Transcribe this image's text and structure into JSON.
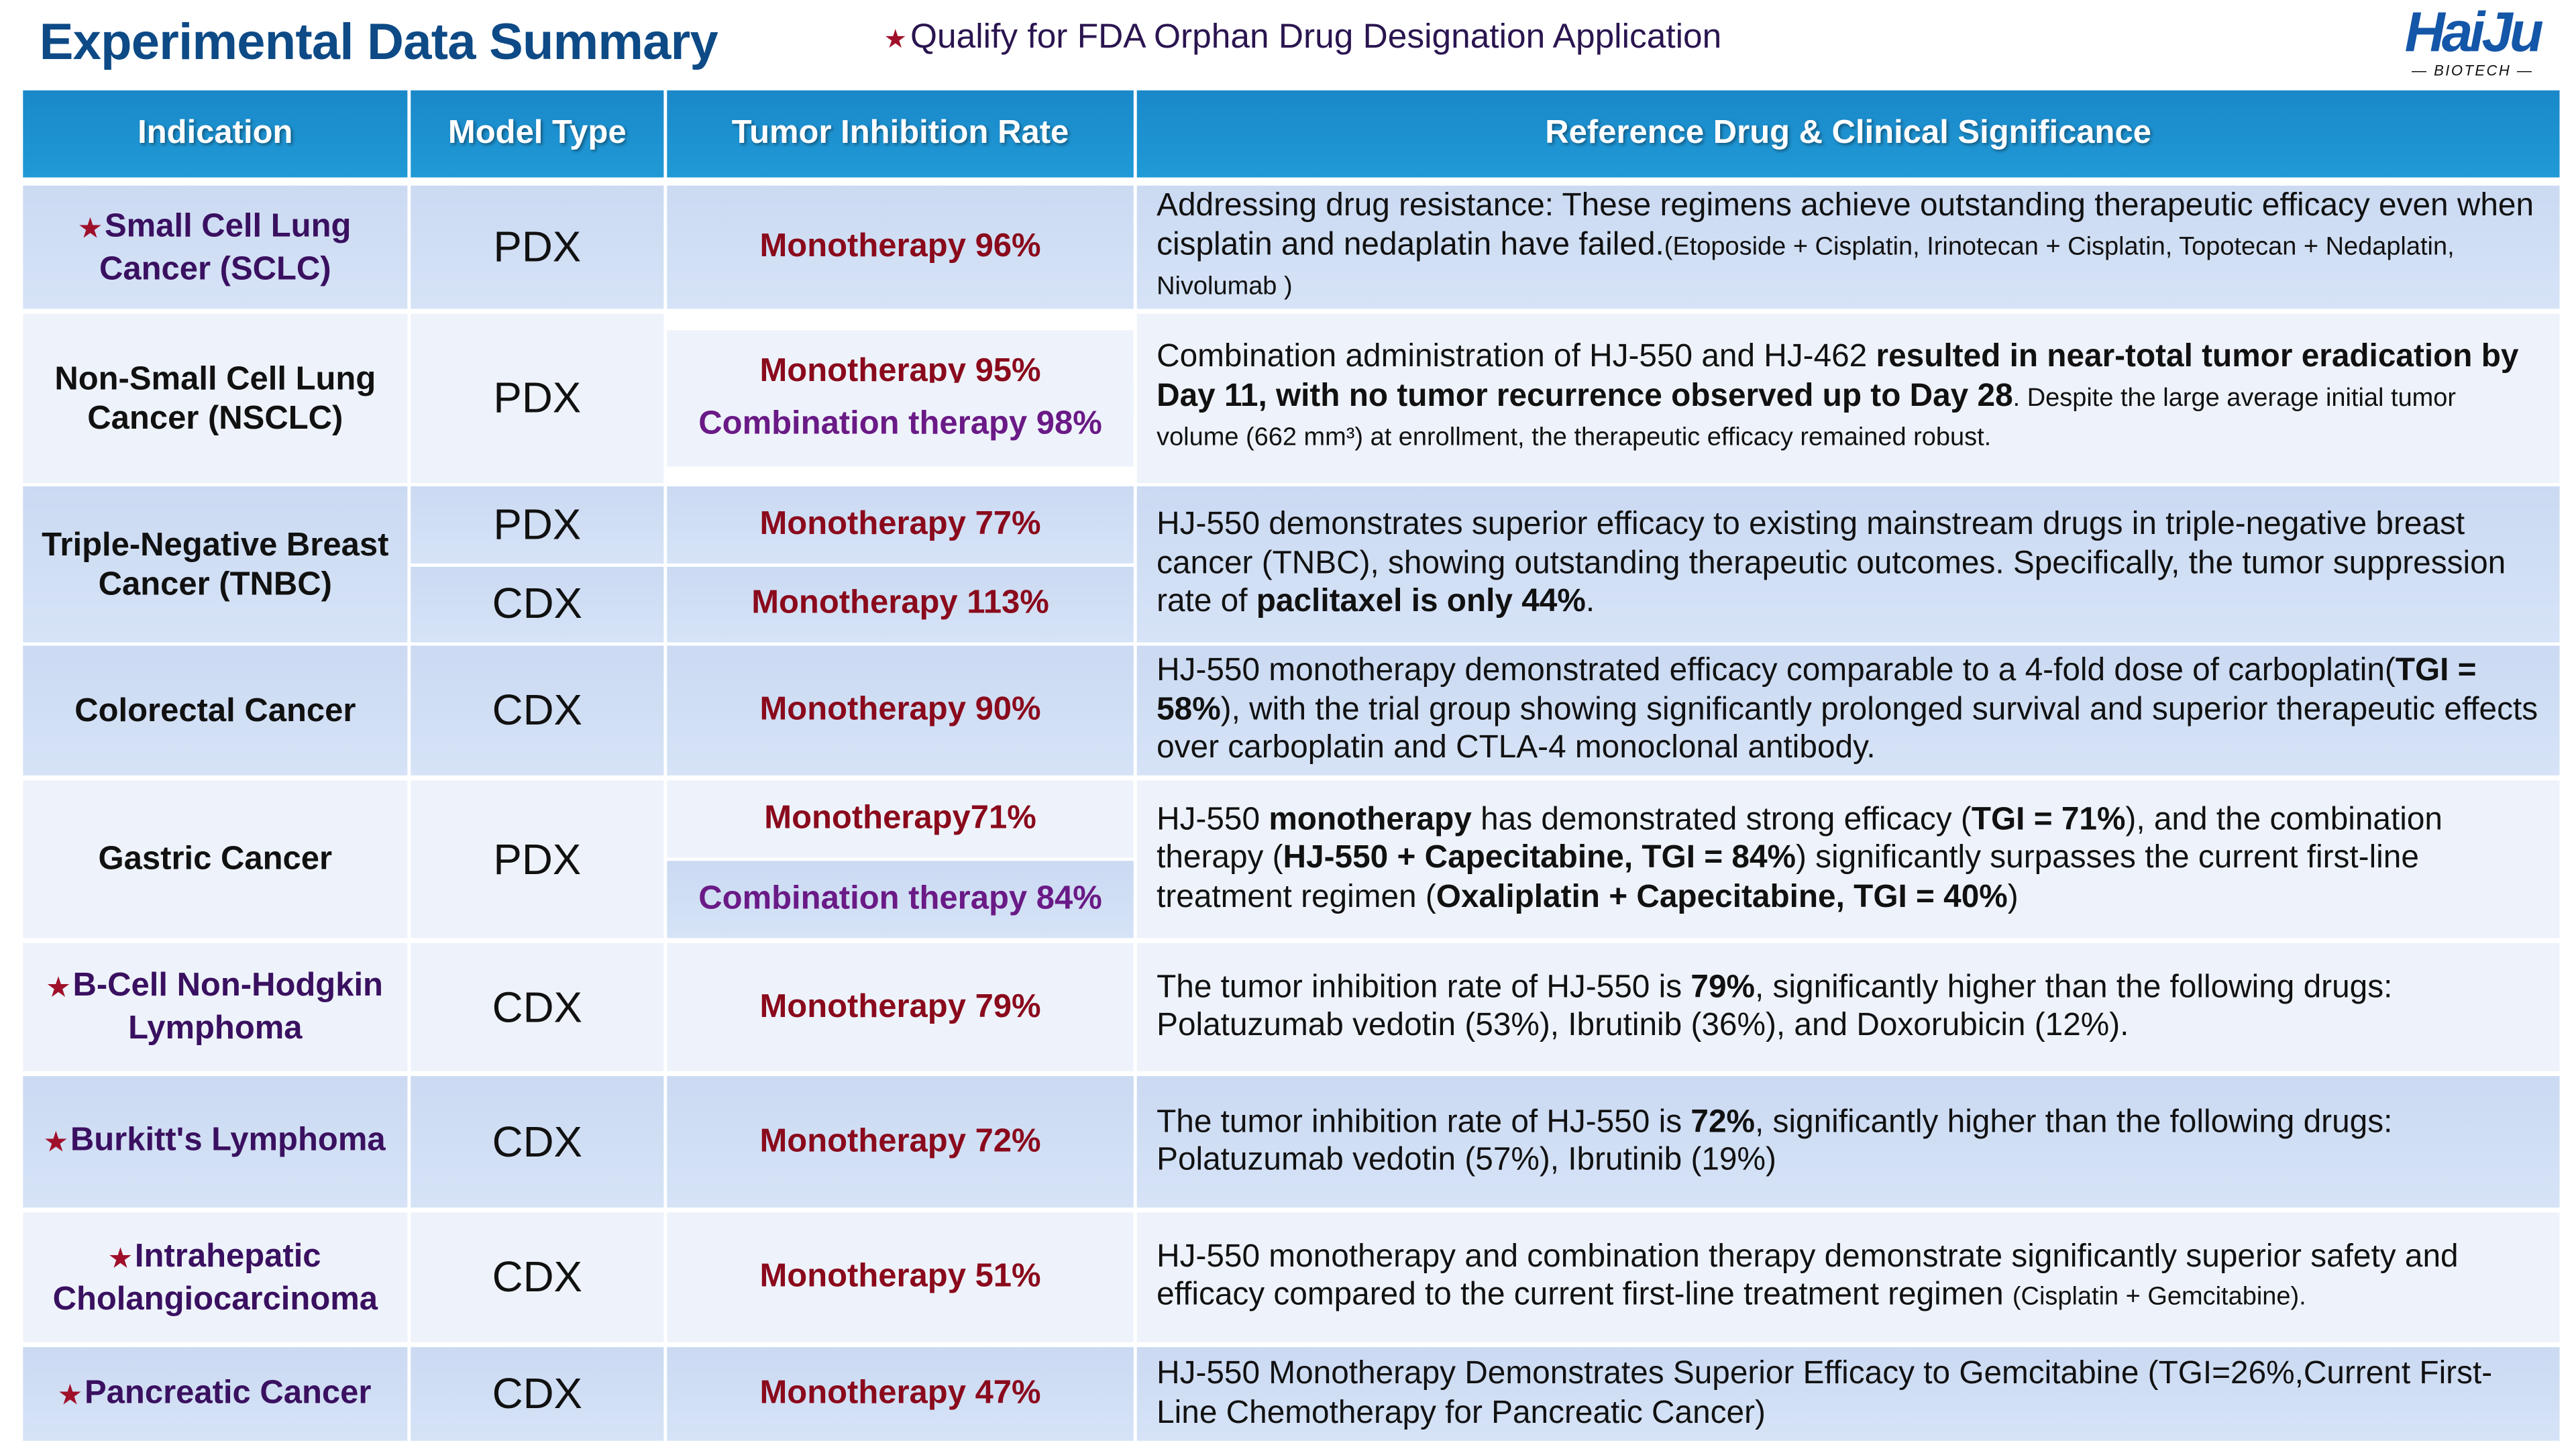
{
  "title": "Experimental Data Summary",
  "subtitle": "Qualify for FDA Orphan Drug Designation Application",
  "logo": {
    "name": "HaiJu",
    "tagline": "BIOTECH"
  },
  "colors": {
    "header": "#1a88c9",
    "title": "#0d4a86",
    "monotherapy": "#8a0a1c",
    "combination": "#6a1a86",
    "star": "#a0102a"
  },
  "headers": [
    "Indication",
    "Model Type",
    "Tumor Inhibition Rate",
    "Reference Drug  &  Clinical Significance"
  ],
  "rows": [
    {
      "indication": "Small Cell Lung Cancer (SCLC)",
      "star": true,
      "models": [
        "PDX"
      ],
      "rates": [
        {
          "text": "Monotherapy 96%",
          "kind": "mono"
        }
      ],
      "bg": "blue",
      "desc": [
        [
          "Addressing drug resistance: These regimens achieve outstanding therapeutic efficacy even when cisplatin and nedaplatin have failed.",
          ""
        ],
        [
          "(Etoposide + Cisplatin, Irinotecan + Cisplatin, Topotecan + Nedaplatin, Nivolumab )",
          "s"
        ]
      ]
    },
    {
      "indication": "Non-Small Cell Lung Cancer (NSCLC)",
      "star": false,
      "models": [
        "PDX"
      ],
      "rates": [
        {
          "text": "Monotherapy  95%",
          "kind": "mono"
        },
        {
          "text": "Combination therapy 98%",
          "kind": "combo"
        }
      ],
      "bg": "light",
      "desc": [
        [
          "Combination administration of HJ-550 and HJ-462 ",
          ""
        ],
        [
          "resulted in near-total tumor eradication by Day 11, with no tumor recurrence observed up to Day 28",
          "b"
        ],
        [
          ".  Despite the large average initial tumor volume (662 mm³) at enrollment, the therapeutic efficacy remained robust.",
          "s"
        ]
      ]
    },
    {
      "indication": "Triple-Negative Breast Cancer (TNBC)",
      "star": false,
      "models": [
        "PDX",
        "CDX"
      ],
      "rates": [
        {
          "text": "Monotherapy 77%",
          "kind": "mono"
        },
        {
          "text": "Monotherapy 113%",
          "kind": "mono"
        }
      ],
      "bg": "blue",
      "desc": [
        [
          "HJ-550 demonstrates superior efficacy to existing mainstream drugs in triple-negative breast cancer (TNBC), showing outstanding therapeutic outcomes. Specifically, the tumor suppression rate of ",
          ""
        ],
        [
          "paclitaxel is only 44%",
          "b"
        ],
        [
          ".",
          ""
        ]
      ]
    },
    {
      "indication": "Colorectal Cancer",
      "star": false,
      "models": [
        "CDX"
      ],
      "rates": [
        {
          "text": "Monotherapy 90%",
          "kind": "mono"
        }
      ],
      "bg": "blue",
      "desc": [
        [
          "HJ-550 monotherapy demonstrated efficacy comparable to a 4-fold dose of carboplatin(",
          ""
        ],
        [
          "TGI = 58%",
          "b"
        ],
        [
          "), with the trial group showing significantly prolonged survival and superior therapeutic effects over carboplatin and CTLA-4 monoclonal antibody.",
          ""
        ]
      ]
    },
    {
      "indication": "Gastric Cancer",
      "star": false,
      "models": [
        "PDX"
      ],
      "rates": [
        {
          "text": "Monotherapy71%",
          "kind": "mono"
        },
        {
          "text": "Combination therapy 84%",
          "kind": "combo"
        }
      ],
      "bg": "light",
      "desc": [
        [
          "HJ-550 ",
          ""
        ],
        [
          "monotherapy",
          "b"
        ],
        [
          " has demonstrated strong efficacy (",
          ""
        ],
        [
          "TGI = 71%",
          "b"
        ],
        [
          "), and the combination therapy (",
          ""
        ],
        [
          "HJ-550 + Capecitabine, TGI = 84%",
          "b"
        ],
        [
          ") significantly surpasses the current first-line treatment regimen (",
          ""
        ],
        [
          "Oxaliplatin + Capecitabine, TGI = 40%",
          "b"
        ],
        [
          ")",
          ""
        ]
      ]
    },
    {
      "indication": "B-Cell Non-Hodgkin Lymphoma",
      "star": true,
      "models": [
        "CDX"
      ],
      "rates": [
        {
          "text": "Monotherapy 79%",
          "kind": "mono"
        }
      ],
      "bg": "light",
      "desc": [
        [
          "The tumor inhibition rate of HJ-550 is ",
          ""
        ],
        [
          "79%",
          "b"
        ],
        [
          ", significantly higher than the following drugs: Polatuzumab vedotin (53%), Ibrutinib (36%), and Doxorubicin (12%).",
          ""
        ]
      ]
    },
    {
      "indication": "Burkitt's Lymphoma",
      "star": true,
      "models": [
        "CDX"
      ],
      "rates": [
        {
          "text": "Monotherapy 72%",
          "kind": "mono"
        }
      ],
      "bg": "blue",
      "desc": [
        [
          "The tumor inhibition rate of HJ-550 is ",
          ""
        ],
        [
          "72%",
          "b"
        ],
        [
          ", significantly higher than the following drugs: Polatuzumab vedotin (57%), Ibrutinib (19%)",
          ""
        ]
      ]
    },
    {
      "indication": "Intrahepatic Cholangiocarcinoma",
      "star": true,
      "models": [
        "CDX"
      ],
      "rates": [
        {
          "text": "Monotherapy 51%",
          "kind": "mono"
        }
      ],
      "bg": "light",
      "desc": [
        [
          "HJ-550 monotherapy and combination therapy demonstrate significantly superior safety and efficacy compared to the current first-line treatment regimen ",
          ""
        ],
        [
          "(Cisplatin + Gemcitabine).",
          "s"
        ]
      ]
    },
    {
      "indication": "Pancreatic Cancer",
      "star": true,
      "models": [
        "CDX"
      ],
      "rates": [
        {
          "text": "Monotherapy 47%",
          "kind": "mono"
        }
      ],
      "bg": "blue",
      "desc": [
        [
          "HJ-550 Monotherapy Demonstrates Superior Efficacy to Gemcitabine (TGI=26%,Current First-Line Chemotherapy for Pancreatic Cancer)",
          ""
        ]
      ]
    }
  ]
}
